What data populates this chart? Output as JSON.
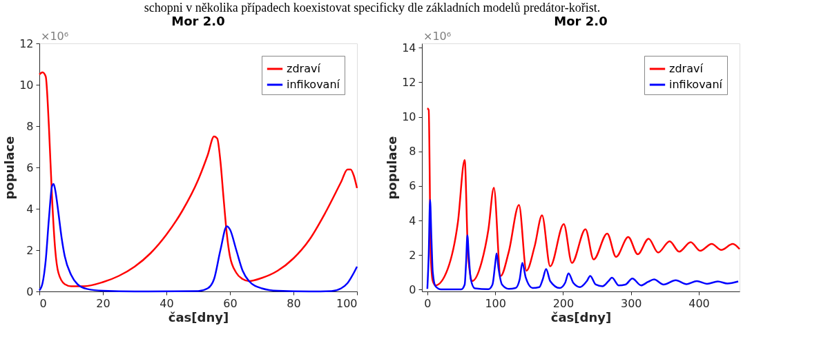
{
  "chart_data": [
    {
      "type": "line",
      "title": "Mor 2.0",
      "xlabel": "čas[dny]",
      "ylabel": "populace",
      "annotations": [
        "schopni v několika případech koexistovat specificky dle základních modelů predátor-kořist.",
        "×10⁶"
      ],
      "xlim": [
        0,
        100
      ],
      "ylim": [
        0,
        12
      ],
      "xticks": [
        0,
        20,
        40,
        60,
        80,
        100
      ],
      "yticks": [
        0,
        2,
        4,
        6,
        8,
        10,
        12
      ],
      "grid": false,
      "legend": "top right",
      "series": [
        {
          "name": "zdraví",
          "color": "#ff0000",
          "x": [
            0,
            1,
            2,
            3,
            4,
            5,
            6,
            8,
            10,
            14,
            20,
            25,
            30,
            35,
            40,
            45,
            50,
            53,
            55,
            56,
            57,
            58,
            59,
            60,
            62,
            64,
            66,
            70,
            75,
            80,
            85,
            90,
            95,
            97,
            98,
            99,
            100
          ],
          "values": [
            10.5,
            10.6,
            10.4,
            8,
            4.5,
            2,
            0.9,
            0.35,
            0.25,
            0.25,
            0.45,
            0.75,
            1.2,
            1.85,
            2.75,
            3.9,
            5.4,
            6.6,
            7.5,
            7.4,
            6.3,
            4.5,
            2.8,
            1.7,
            0.9,
            0.6,
            0.5,
            0.65,
            1.0,
            1.6,
            2.5,
            3.8,
            5.3,
            5.9,
            5.9,
            5.6,
            5.0
          ]
        },
        {
          "name": "infikovaní",
          "color": "#0000ff",
          "x": [
            0,
            1,
            2,
            3,
            4,
            4.5,
            5,
            6,
            7,
            8,
            10,
            12,
            15,
            20,
            30,
            50,
            53,
            55,
            57,
            59,
            60,
            62,
            64,
            66,
            70,
            75,
            85,
            92,
            95,
            97,
            99,
            100
          ],
          "values": [
            0.05,
            0.4,
            1.5,
            3.5,
            5.1,
            5.2,
            4.9,
            3.8,
            2.6,
            1.7,
            0.8,
            0.35,
            0.12,
            0.03,
            0,
            0.02,
            0.15,
            0.6,
            2.0,
            3.15,
            3.0,
            2.0,
            1.0,
            0.5,
            0.15,
            0.03,
            0,
            0.02,
            0.15,
            0.4,
            0.9,
            1.2
          ]
        }
      ]
    },
    {
      "type": "line",
      "title": "Mor 2.0",
      "xlabel": "čas[dny]",
      "ylabel": "populace",
      "annotations": [
        "×10⁶"
      ],
      "xlim": [
        -8,
        460
      ],
      "ylim": [
        -0.1,
        14.25
      ],
      "xticks": [
        0,
        100,
        200,
        300,
        400
      ],
      "yticks": [
        0,
        2,
        4,
        6,
        8,
        10,
        12,
        14
      ],
      "grid": false,
      "legend": "top right",
      "series": [
        {
          "name": "zdraví",
          "color": "#ff0000",
          "x": [
            0,
            2,
            5,
            8,
            12,
            30,
            45,
            55,
            60,
            66,
            80,
            90,
            98,
            108,
            120,
            135,
            146,
            158,
            169,
            181,
            201,
            213,
            233,
            245,
            265,
            278,
            296,
            310,
            326,
            340,
            357,
            371,
            388,
            402,
            419,
            433,
            450,
            460
          ],
          "values": [
            10.5,
            10.4,
            2,
            0.5,
            0.25,
            1.2,
            3.9,
            7.5,
            2,
            0.5,
            1.6,
            3.5,
            5.9,
            0.8,
            2.2,
            4.9,
            1.1,
            2.5,
            4.3,
            1.35,
            3.8,
            1.55,
            3.5,
            1.75,
            3.25,
            1.9,
            3.05,
            2.05,
            2.95,
            2.15,
            2.8,
            2.2,
            2.75,
            2.25,
            2.65,
            2.3,
            2.65,
            2.35
          ]
        },
        {
          "name": "infikovaní",
          "color": "#0000ff",
          "x": [
            0,
            2,
            4,
            6,
            8,
            12,
            20,
            50,
            55,
            57,
            59,
            61,
            64,
            70,
            90,
            96,
            100,
            102,
            105,
            110,
            120,
            130,
            136,
            140,
            145,
            155,
            165,
            170,
            175,
            181,
            195,
            203,
            208,
            215,
            225,
            235,
            240,
            248,
            258,
            267,
            272,
            282,
            292,
            302,
            315,
            325,
            334,
            348,
            366,
            382,
            397,
            412,
            428,
            442,
            458
          ],
          "values": [
            0.05,
            2,
            5.2,
            3,
            1,
            0.2,
            0.02,
            0.02,
            0.3,
            1.5,
            3.15,
            2,
            0.6,
            0.08,
            0.03,
            0.3,
            1.5,
            2.1,
            1.2,
            0.3,
            0.05,
            0.1,
            0.6,
            1.55,
            0.7,
            0.1,
            0.15,
            0.6,
            1.2,
            0.5,
            0.1,
            0.4,
            0.95,
            0.4,
            0.15,
            0.5,
            0.8,
            0.3,
            0.2,
            0.5,
            0.7,
            0.25,
            0.3,
            0.65,
            0.25,
            0.45,
            0.6,
            0.3,
            0.55,
            0.32,
            0.5,
            0.34,
            0.48,
            0.36,
            0.48
          ]
        }
      ]
    }
  ]
}
